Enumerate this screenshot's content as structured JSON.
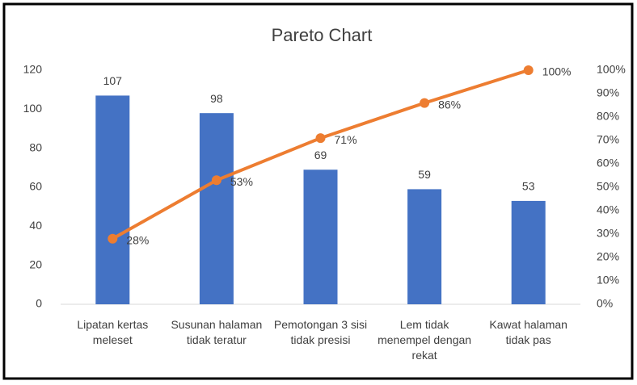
{
  "chart_data": {
    "type": "pareto",
    "title": "Pareto Chart",
    "categories": [
      "Lipatan kertas meleset",
      "Susunan halaman tidak teratur",
      "Pemotongan 3 sisi tidak presisi",
      "Lem tidak menempel dengan rekat",
      "Kawat halaman tidak pas"
    ],
    "series": [
      {
        "type": "bar",
        "color": "#4472c4",
        "values": [
          107,
          98,
          69,
          59,
          53
        ]
      },
      {
        "type": "line",
        "color": "#ed7d31",
        "axis": "y2",
        "values": [
          28,
          53,
          71,
          86,
          100
        ],
        "value_labels": [
          "28%",
          "53%",
          "71%",
          "86%",
          "100%"
        ]
      }
    ],
    "ylim": [
      0,
      120
    ],
    "yticks": [
      0,
      20,
      40,
      60,
      80,
      100,
      120
    ],
    "y2lim": [
      0,
      100
    ],
    "y2ticks": [
      {
        "value": 0,
        "label": "0%"
      },
      {
        "value": 10,
        "label": "10%"
      },
      {
        "value": 20,
        "label": "20%"
      },
      {
        "value": 30,
        "label": "30%"
      },
      {
        "value": 40,
        "label": "40%"
      },
      {
        "value": 50,
        "label": "50%"
      },
      {
        "value": 60,
        "label": "60%"
      },
      {
        "value": 70,
        "label": "70%"
      },
      {
        "value": 80,
        "label": "80%"
      },
      {
        "value": 90,
        "label": "90%"
      },
      {
        "value": 100,
        "label": "100%"
      }
    ],
    "grid": false
  }
}
